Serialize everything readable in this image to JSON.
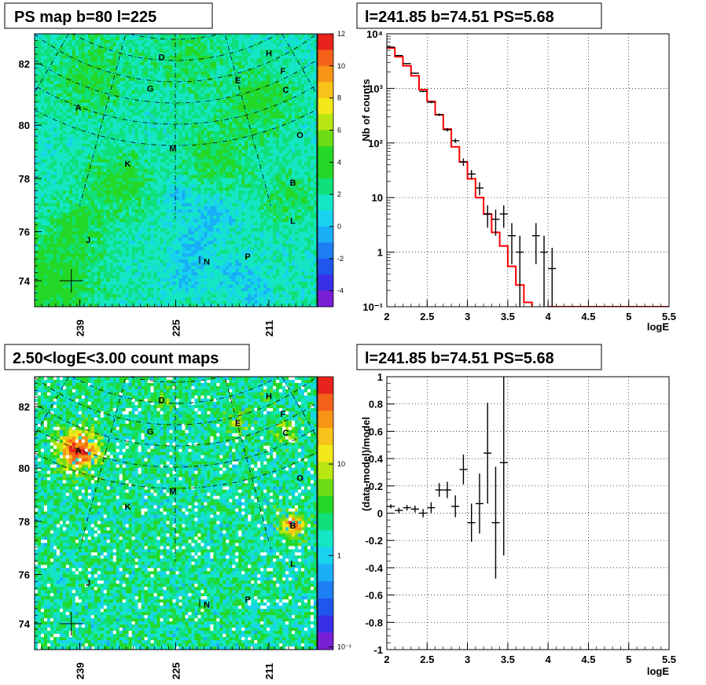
{
  "chart_data": [
    {
      "type": "heatmap",
      "title": "PS map b=80 l=225",
      "xticks": [
        "239",
        "225",
        "211"
      ],
      "yticks": [
        "74",
        "76",
        "78",
        "80",
        "82"
      ],
      "colorbar": {
        "scale": "linear",
        "range": [
          -5,
          12
        ],
        "ticks": [
          "12",
          "10",
          "8",
          "6",
          "4",
          "2",
          "0",
          "-2",
          "-4"
        ]
      },
      "sources": [
        "D",
        "H",
        "F",
        "E",
        "C",
        "G",
        "A",
        "O",
        "M",
        "K",
        "B",
        "L",
        "J",
        "N",
        "P"
      ]
    },
    {
      "type": "line",
      "title": "l=241.85 b=74.51 PS=5.68",
      "xlabel": "logE",
      "ylabel": "Nb of counts",
      "yscale": "log",
      "xlim": [
        2,
        5.5
      ],
      "ylim": [
        0.1,
        10000
      ],
      "xticks": [
        "2",
        "2.5",
        "3",
        "3.5",
        "4",
        "4.5",
        "5",
        "5.5"
      ],
      "ytick_labels": [
        "10⁻¹",
        "1",
        "10",
        "10²",
        "10³",
        "10⁴"
      ],
      "grid": true,
      "series": [
        {
          "kind": "points",
          "x": [
            2.05,
            2.15,
            2.25,
            2.35,
            2.45,
            2.55,
            2.65,
            2.75,
            2.85,
            2.95,
            3.05,
            3.15,
            3.25,
            3.35,
            3.45,
            3.55,
            3.65,
            3.85,
            3.95,
            4.05
          ],
          "y": [
            5700,
            4000,
            2850,
            1900,
            880,
            560,
            330,
            175,
            110,
            45,
            27,
            15,
            5,
            4,
            5,
            2,
            1,
            2,
            1,
            0.5
          ],
          "err": [
            75,
            63,
            53,
            44,
            30,
            24,
            18,
            13,
            10,
            7,
            5,
            4,
            2.2,
            2,
            2.2,
            1.4,
            1,
            1.4,
            1,
            0.7
          ],
          "color": "#000000"
        },
        {
          "kind": "step",
          "edges": [
            2.0,
            2.1,
            2.2,
            2.3,
            2.4,
            2.5,
            2.6,
            2.7,
            2.8,
            2.9,
            3.0,
            3.1,
            3.2,
            3.3,
            3.4,
            3.5,
            3.6,
            3.7,
            3.8,
            3.9,
            4.0,
            4.1,
            5.5
          ],
          "values": [
            5500,
            3800,
            2600,
            1700,
            950,
            580,
            330,
            180,
            85,
            45,
            22,
            10,
            5,
            2.3,
            1.3,
            0.55,
            0.25,
            0.12,
            0.05,
            0.03,
            0.1,
            0.1
          ],
          "color": "#ff0000"
        }
      ]
    },
    {
      "type": "heatmap",
      "title": "2.50<logE<3.00 count maps",
      "xticks": [
        "239",
        "225",
        "211"
      ],
      "yticks": [
        "74",
        "76",
        "78",
        "80",
        "82"
      ],
      "colorbar": {
        "scale": "log",
        "ticks": [
          "10",
          "1",
          "10⁻¹"
        ]
      },
      "sources": [
        "D",
        "H",
        "F",
        "E",
        "C",
        "G",
        "A",
        "O",
        "M",
        "K",
        "B",
        "L",
        "J",
        "N",
        "P"
      ]
    },
    {
      "type": "scatter",
      "title": "l=241.85 b=74.51 PS=5.68",
      "xlabel": "logE",
      "ylabel": "(data-model)/model",
      "xlim": [
        2,
        5.5
      ],
      "ylim": [
        -1,
        1
      ],
      "xticks": [
        "2",
        "2.5",
        "3",
        "3.5",
        "4",
        "4.5",
        "5",
        "5.5"
      ],
      "yticks": [
        "1",
        "0.8",
        "0.6",
        "0.4",
        "0.2",
        "0",
        "-0.2",
        "-0.4",
        "-0.6",
        "-0.8",
        "-1"
      ],
      "grid": true,
      "series": [
        {
          "x": [
            2.05,
            2.15,
            2.25,
            2.35,
            2.45,
            2.55,
            2.65,
            2.75,
            2.85,
            2.95,
            3.05,
            3.15,
            3.25,
            3.35,
            3.45
          ],
          "y": [
            0.05,
            0.02,
            0.04,
            0.03,
            0.0,
            0.04,
            0.17,
            0.17,
            0.05,
            0.32,
            -0.07,
            0.07,
            0.44,
            -0.07,
            0.37
          ],
          "err": [
            0.015,
            0.02,
            0.02,
            0.025,
            0.03,
            0.04,
            0.05,
            0.06,
            0.08,
            0.11,
            0.14,
            0.22,
            0.37,
            0.41,
            0.68
          ],
          "color": "#000000"
        }
      ]
    }
  ]
}
